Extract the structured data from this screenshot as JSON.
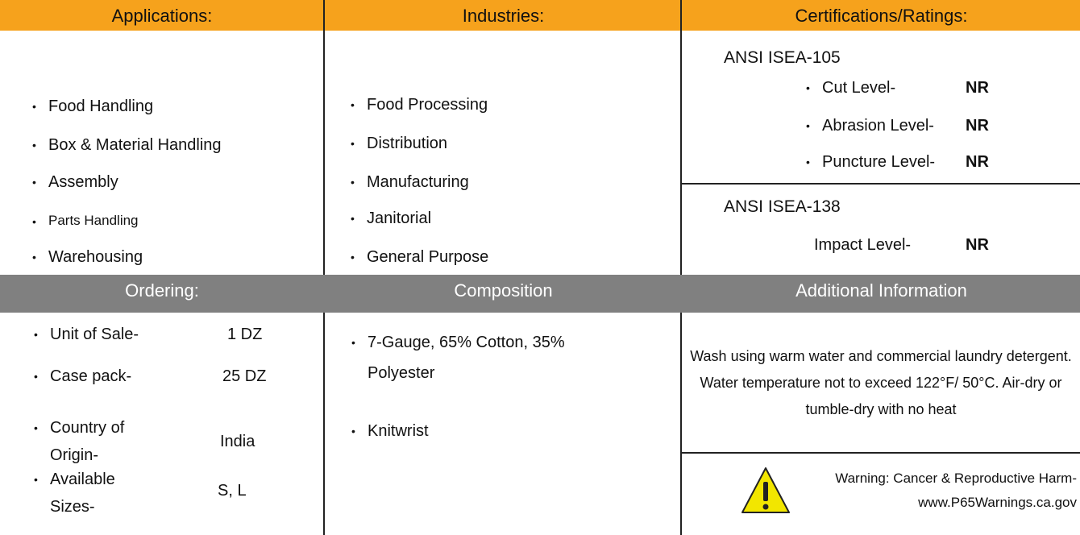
{
  "applications": {
    "title": "Applications:",
    "items": [
      "Food Handling",
      "Box & Material Handling",
      "Assembly",
      "Parts Handling",
      "Warehousing"
    ]
  },
  "industries": {
    "title": "Industries:",
    "items": [
      "Food Processing",
      "Distribution",
      "Manufacturing",
      "Janitorial",
      "General Purpose"
    ]
  },
  "certifications": {
    "title": "Certifications/Ratings:",
    "groups": [
      {
        "standard": "ANSI ISEA-105",
        "ratings": [
          {
            "label": "Cut Level-",
            "value": "NR"
          },
          {
            "label": "Abrasion Level-",
            "value": "NR"
          },
          {
            "label": "Puncture Level-",
            "value": "NR"
          }
        ]
      },
      {
        "standard": "ANSI ISEA-138",
        "ratings": [
          {
            "label": "Impact Level-",
            "value": "NR"
          }
        ]
      }
    ]
  },
  "ordering": {
    "title": "Ordering:",
    "rows": [
      {
        "label": "Unit of Sale-",
        "value": "1 DZ"
      },
      {
        "label": "Case pack-",
        "value": "25 DZ"
      },
      {
        "label": "Country of Origin-",
        "value": "India"
      },
      {
        "label": "Available Sizes-",
        "value": "S, L"
      }
    ]
  },
  "composition": {
    "title": "Composition",
    "items": [
      "7-Gauge, 65% Cotton, 35% Polyester",
      "Knitwrist"
    ]
  },
  "additional": {
    "title": "Additional Information",
    "note": "Wash using warm water and commercial laundry detergent.  Water temperature not to exceed 122°F/ 50°C.  Air-dry or tumble-dry with no heat",
    "warning": "Warning: Cancer & Reproductive Harm-",
    "warning_url": "www.P65Warnings.ca.gov"
  }
}
